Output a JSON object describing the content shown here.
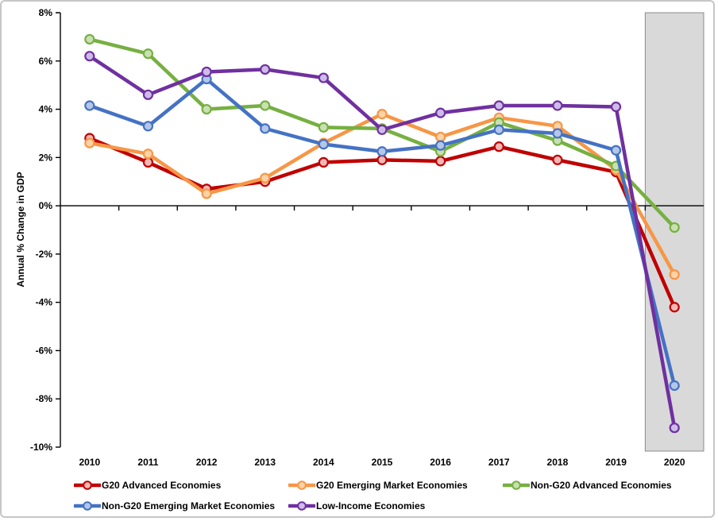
{
  "figure": {
    "background": "#ffffff",
    "border_color": "#c6c6c6"
  },
  "chart_data": {
    "type": "line",
    "title": "",
    "ylabel": "Annual % Change in GDP",
    "xlabel": "",
    "categories": [
      "2010",
      "2011",
      "2012",
      "2013",
      "2014",
      "2015",
      "2016",
      "2017",
      "2018",
      "2019",
      "2020"
    ],
    "ylim": [
      -10,
      8
    ],
    "ytick_labels": [
      "8%",
      "6%",
      "4%",
      "2%",
      "0%",
      "-2%",
      "-4%",
      "-6%",
      "-8%",
      "-10%"
    ],
    "grid": false,
    "zero_baseline": true,
    "legend_position": "bottom",
    "highlight_region": {
      "category": "2020",
      "fill": "#d9d9d9",
      "border": "#8c8c8c"
    },
    "series": [
      {
        "name": "G20 Advanced Economies",
        "color": "#C00000",
        "marker_fill": "#F2B8B8",
        "values": [
          2.8,
          1.8,
          0.7,
          1.0,
          1.8,
          1.9,
          1.85,
          2.45,
          1.9,
          1.4,
          -4.2
        ]
      },
      {
        "name": "G20 Emerging Market Economies",
        "color": "#F79646",
        "marker_fill": "#FCD3A6",
        "values": [
          2.6,
          2.15,
          0.5,
          1.15,
          2.6,
          3.8,
          2.85,
          3.65,
          3.3,
          1.5,
          -2.85
        ]
      },
      {
        "name": "Non-G20 Advanced Economies",
        "color": "#76B041",
        "marker_fill": "#C9E0B2",
        "values": [
          6.9,
          6.3,
          4.0,
          4.15,
          3.25,
          3.2,
          2.25,
          3.45,
          2.7,
          1.65,
          -0.9
        ]
      },
      {
        "name": "Non-G20 Emerging Market Economies",
        "color": "#4472C4",
        "marker_fill": "#B4C7E7",
        "values": [
          4.15,
          3.3,
          5.25,
          3.2,
          2.55,
          2.25,
          2.5,
          3.15,
          3.0,
          2.3,
          -7.45
        ]
      },
      {
        "name": "Low-Income Economies",
        "color": "#7030A0",
        "marker_fill": "#CDBCE8",
        "values": [
          6.2,
          4.6,
          5.55,
          5.65,
          5.3,
          3.15,
          3.85,
          4.15,
          4.15,
          4.1,
          -9.2
        ]
      }
    ]
  }
}
